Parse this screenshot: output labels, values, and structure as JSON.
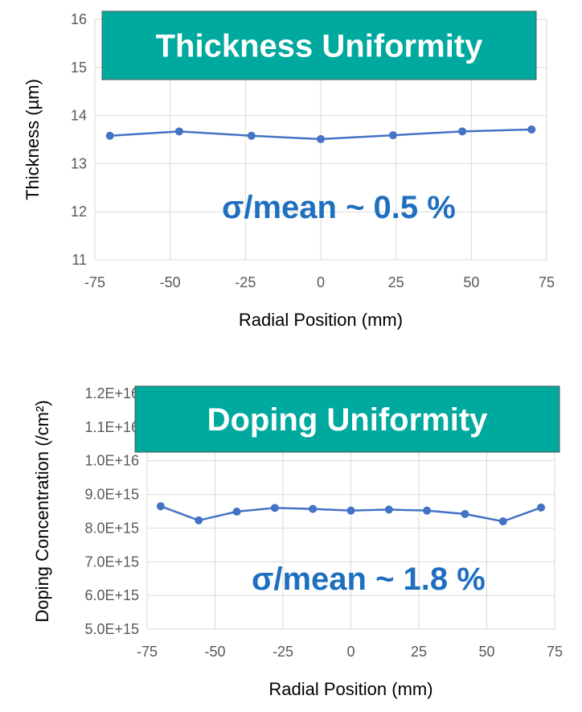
{
  "chart_data": [
    {
      "type": "line",
      "title": "Thickness Uniformity",
      "xlabel": "Radial Position (mm)",
      "ylabel": "Thickness (µm)",
      "xlim": [
        -75,
        75
      ],
      "ylim": [
        11,
        16
      ],
      "xticks": [
        "-75",
        "-50",
        "-25",
        "0",
        "25",
        "50",
        "75"
      ],
      "yticks": [
        "11",
        "12",
        "13",
        "14",
        "15",
        "16"
      ],
      "grid": true,
      "annotation": "σ/mean ~ 0.5 %",
      "series": [
        {
          "x": [
            -70,
            -47,
            -23,
            0,
            24,
            47,
            70
          ],
          "y": [
            13.58,
            13.67,
            13.58,
            13.51,
            13.59,
            13.67,
            13.71
          ]
        }
      ],
      "colors": {
        "series": "#4472c4",
        "banner": "#00a99d",
        "annotation": "#1f6fbf"
      }
    },
    {
      "type": "line",
      "title": "Doping Uniformity",
      "xlabel": "Radial Position (mm)",
      "ylabel": "Doping Concentration (/cm²)",
      "xlim": [
        -75,
        75
      ],
      "ylim": [
        5000000000000000.0,
        1.2e+16
      ],
      "xticks": [
        "-75",
        "-50",
        "-25",
        "0",
        "25",
        "50",
        "75"
      ],
      "yticks": [
        "5.0E+15",
        "6.0E+15",
        "7.0E+15",
        "8.0E+15",
        "9.0E+15",
        "1.0E+16",
        "1.1E+16",
        "1.2E+16"
      ],
      "grid": true,
      "annotation": "σ/mean ~ 1.8 %",
      "series": [
        {
          "x": [
            -70,
            -56,
            -42,
            -28,
            -14,
            0,
            14,
            28,
            42,
            56,
            70
          ],
          "y": [
            8650000000000000.0,
            8230000000000000.0,
            8490000000000000.0,
            8600000000000000.0,
            8570000000000000.0,
            8520000000000000.0,
            8550000000000000.0,
            8520000000000000.0,
            8420000000000000.0,
            8200000000000000.0,
            8610000000000000.0
          ]
        }
      ],
      "colors": {
        "series": "#4472c4",
        "banner": "#00a99d",
        "annotation": "#1f6fbf"
      }
    }
  ]
}
